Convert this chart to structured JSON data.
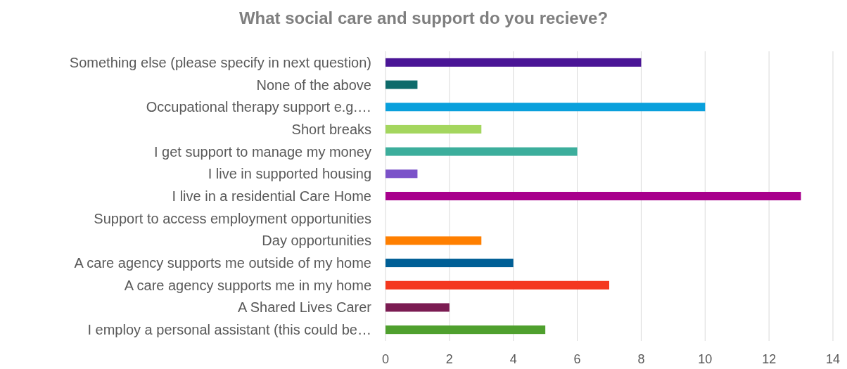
{
  "chart_data": {
    "type": "bar",
    "orientation": "horizontal",
    "title": "What social care and support do you recieve?",
    "categories": [
      "Something else (please specify in next question)",
      "None of the above",
      "Occupational therapy support e.g.…",
      "Short breaks",
      "I get support to manage my money",
      "I live in supported housing",
      "I live in a residential Care Home",
      "Support to access employment opportunities",
      "Day opportunities",
      "A care agency supports me outside of my home",
      "A care agency supports me in my home",
      "A Shared Lives Carer",
      "I employ a personal assistant (this could be…"
    ],
    "values": [
      8,
      1,
      10,
      3,
      6,
      1,
      13,
      0,
      3,
      4,
      7,
      2,
      5
    ],
    "colors": [
      "#4a1596",
      "#0e6b6b",
      "#0aa0dc",
      "#a4d65e",
      "#3cae9c",
      "#7b52c9",
      "#a8008c",
      "#888888",
      "#ff7f00",
      "#005f96",
      "#f4381f",
      "#7b1c52",
      "#4fa02e"
    ],
    "xlim": [
      0,
      14
    ],
    "xticks": [
      0,
      2,
      4,
      6,
      8,
      10,
      12,
      14
    ],
    "grid": "x"
  }
}
